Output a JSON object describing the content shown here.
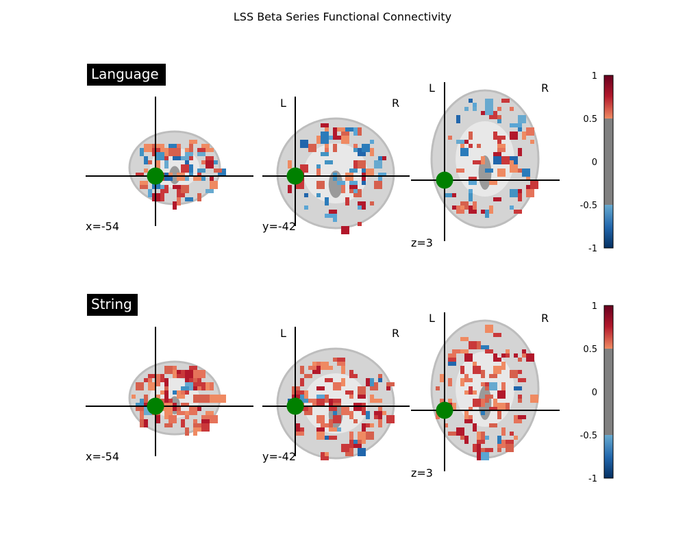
{
  "figure": {
    "title": "LSS Beta Series Functional Connectivity"
  },
  "panels": [
    {
      "label": "Language",
      "cuts": [
        {
          "view": "sagittal",
          "coord_label": "x=-54"
        },
        {
          "view": "coronal",
          "coord_label": "y=-42",
          "left": "L",
          "right": "R"
        },
        {
          "view": "axial",
          "coord_label": "z=3",
          "left": "L",
          "right": "R"
        }
      ],
      "colorbar": {
        "ticks": [
          "1",
          "0.5",
          "0",
          "-0.5",
          "-1"
        ],
        "vmin": -1,
        "vmax": 1,
        "threshold": 0.5
      }
    },
    {
      "label": "String",
      "cuts": [
        {
          "view": "sagittal",
          "coord_label": "x=-54"
        },
        {
          "view": "coronal",
          "coord_label": "y=-42",
          "left": "L",
          "right": "R"
        },
        {
          "view": "axial",
          "coord_label": "z=3",
          "left": "L",
          "right": "R"
        }
      ],
      "colorbar": {
        "ticks": [
          "1",
          "0.5",
          "0",
          "-0.5",
          "-1"
        ],
        "vmin": -1,
        "vmax": 1,
        "threshold": 0.5
      }
    }
  ],
  "colors": {
    "seed_marker": "#008000",
    "positive": "#d6604d",
    "negative": "#4393c3",
    "neutral": "#808080"
  }
}
